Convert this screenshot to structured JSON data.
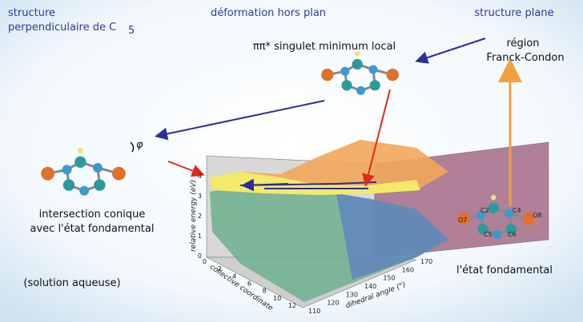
{
  "labels": {
    "top_left": [
      "structure",
      "perpendiculaire de C"
    ],
    "top_left_sub": "5",
    "top_center": "déformation hors plan",
    "top_right": "structure plane",
    "local_min": "ππ* singulet minimum local",
    "franck_condon": [
      "région",
      "Franck-Condon"
    ],
    "phi": "φ",
    "conical": [
      "intersection conique",
      "avec l'état fondamental"
    ],
    "solvent": "(solution aqueuse)",
    "ground": "l'état fondamental"
  },
  "plot": {
    "z_label": "relative energy (eV)",
    "z_ticks": [
      4,
      3,
      2,
      1,
      0
    ],
    "x_label": "collective coordinate",
    "x_ticks": [
      0,
      2,
      4,
      6,
      8,
      10,
      12
    ],
    "y_label": "dihedral angle (°)",
    "y_ticks": [
      110,
      120,
      130,
      140,
      150,
      160,
      170
    ]
  },
  "atoms": [
    "O7",
    "C2",
    "C4",
    "O8",
    "C5",
    "C6"
  ]
}
